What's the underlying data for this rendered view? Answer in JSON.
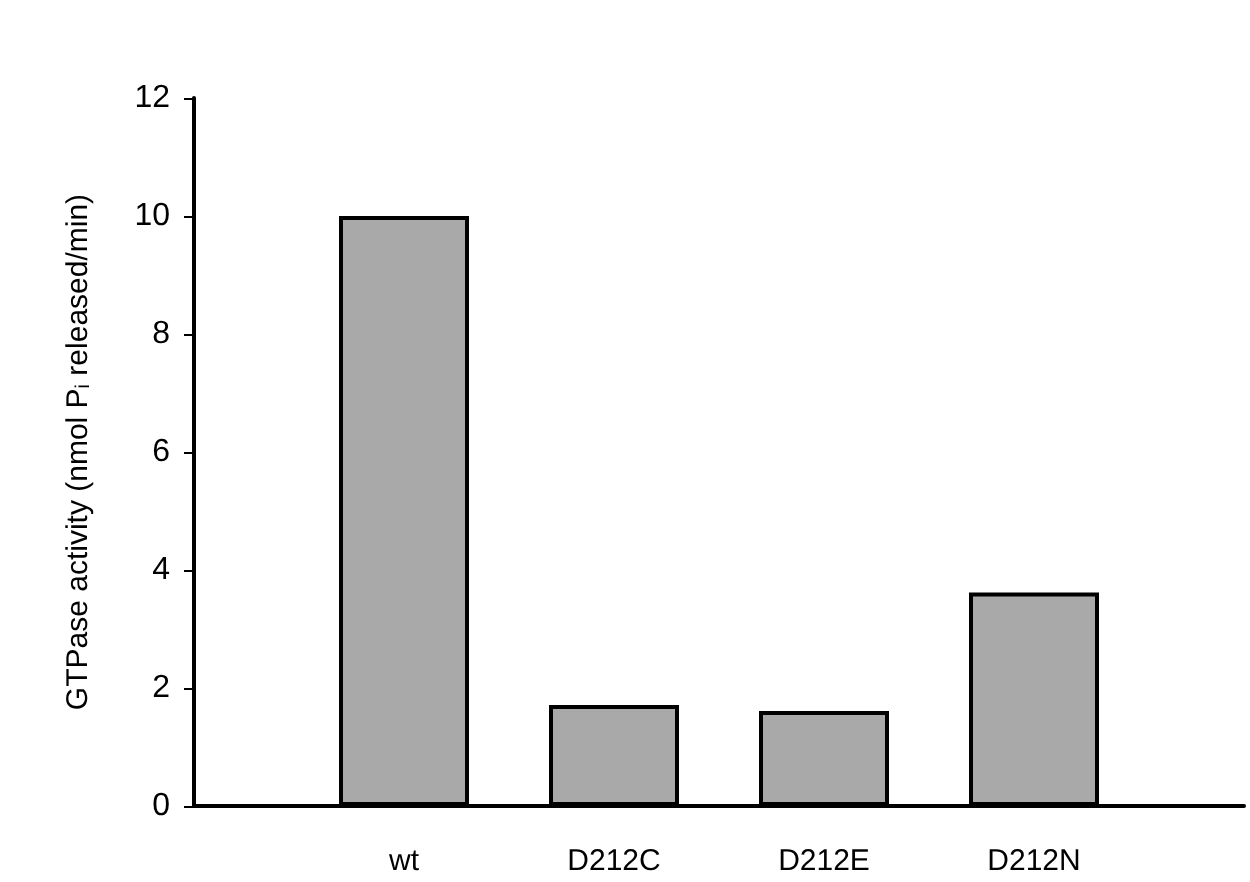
{
  "chart_data": {
    "type": "bar",
    "ylabel": "GTPase activity (nmol P$_{i}$ released/min)",
    "categories": [
      null,
      "wt",
      "D212C",
      "D212E",
      "D212N",
      null
    ],
    "values": [
      null,
      10,
      1.71,
      1.61,
      3.62,
      null
    ],
    "color": "#a9a9a9",
    "ylim": [
      0,
      12
    ],
    "yticks": [
      0,
      2,
      4,
      6,
      8,
      10,
      12
    ],
    "grid": false
  }
}
